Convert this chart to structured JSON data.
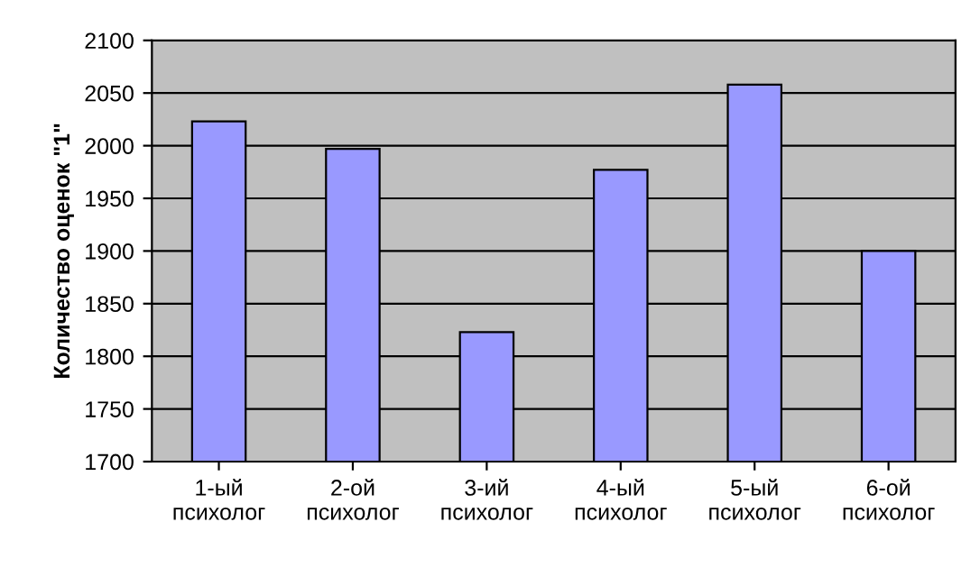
{
  "chart_data": {
    "type": "bar",
    "ylabel": "Количество оценок \"1\"",
    "categories": [
      "1-ый\nпсихолог",
      "2-ой\nпсихолог",
      "3-ий\nпсихолог",
      "4-ый\nпсихолог",
      "5-ый\nпсихолог",
      "6-ой\nпсихолог"
    ],
    "values": [
      2023,
      1997,
      1823,
      1977,
      2058,
      1900
    ],
    "color": "#9999ff",
    "ylim": [
      1700,
      2100
    ],
    "yticks": [
      1700,
      1750,
      1800,
      1850,
      1900,
      1950,
      2000,
      2050,
      2100
    ],
    "grid": "y"
  }
}
